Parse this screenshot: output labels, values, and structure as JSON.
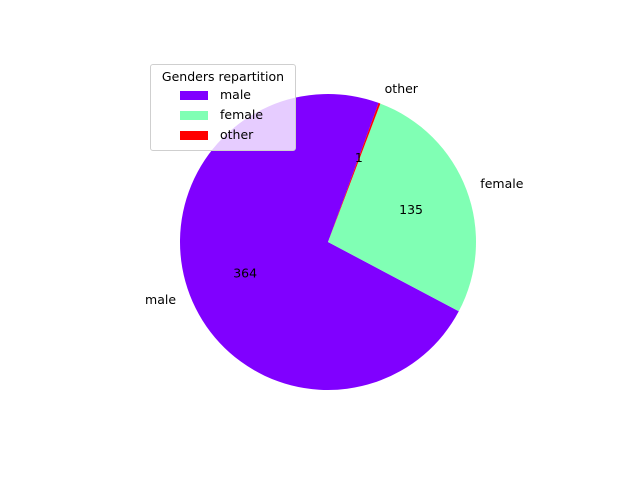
{
  "chart_data": {
    "type": "pie",
    "title": "",
    "categories": [
      "male",
      "female",
      "other"
    ],
    "values": [
      364,
      135,
      1
    ],
    "colors": [
      "#8000ff",
      "#80ffb4",
      "#ff0000"
    ],
    "value_labels": [
      "364",
      "135",
      "1"
    ],
    "legend": {
      "title": "Genders repartition",
      "entries": [
        "male",
        "female",
        "other"
      ],
      "placement": "upper-left"
    },
    "start_angle_deg": 70,
    "direction": "counterclockwise"
  }
}
